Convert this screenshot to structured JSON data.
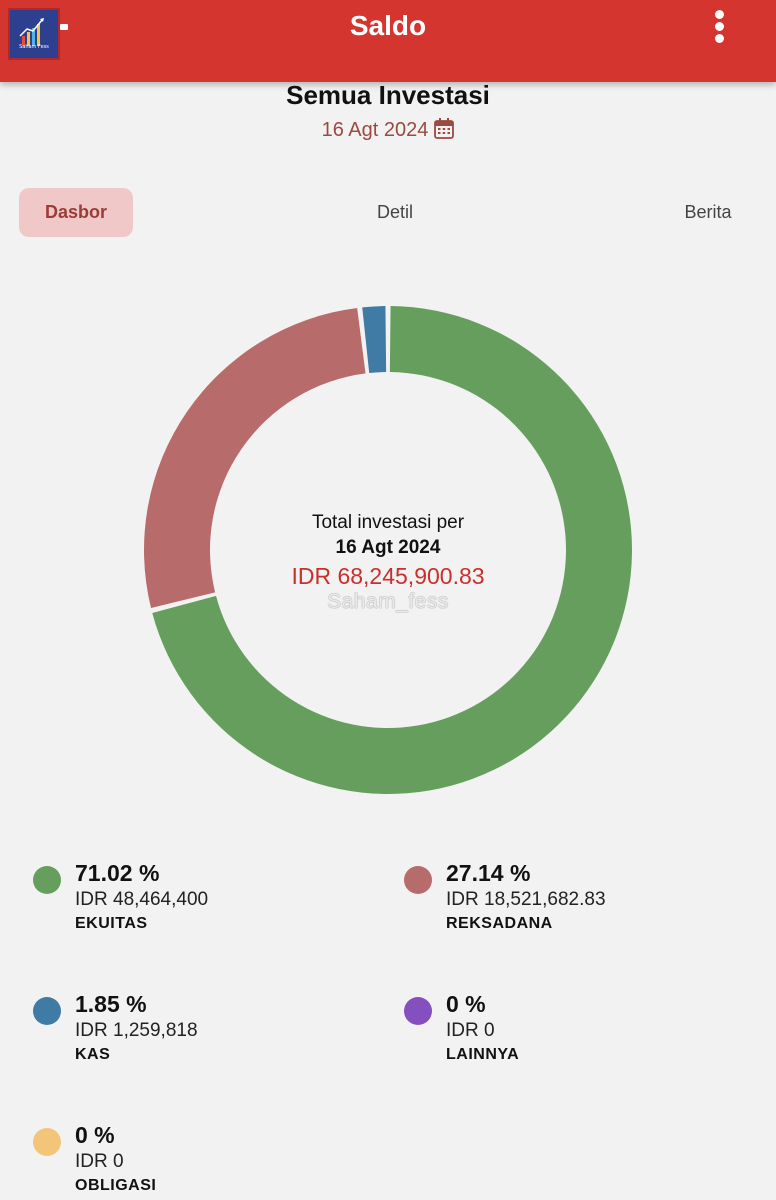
{
  "app_bar": {
    "title": "Saldo",
    "logo_text": "Saham Fess",
    "menu_icon": "more-vertical-icon",
    "color": "#d4352f"
  },
  "page": {
    "heading": "Semua Investasi",
    "date": "16 Agt 2024",
    "date_icon": "calendar-icon"
  },
  "tabs": [
    {
      "label": "Dasbor",
      "active": true
    },
    {
      "label": "Detil",
      "active": false
    },
    {
      "label": "Berita",
      "active": false
    }
  ],
  "donut": {
    "center_line1": "Total investasi per",
    "center_line2": "16 Agt 2024",
    "center_amount": "IDR 68,245,900.83",
    "watermark": "Saham_fess"
  },
  "chart_data": {
    "type": "pie",
    "categories": [
      "EKUITAS",
      "REKSADANA",
      "KAS",
      "LAINNYA",
      "OBLIGASI"
    ],
    "values": [
      71.02,
      27.14,
      1.85,
      0,
      0
    ],
    "colors": [
      "#669f5d",
      "#b86b6b",
      "#3f7ba5",
      "#8450bf",
      "#f3c578"
    ]
  },
  "legend": [
    {
      "percent": "71.02 %",
      "amount": "IDR 48,464,400",
      "label": "EKUITAS",
      "color": "#669f5d"
    },
    {
      "percent": "27.14 %",
      "amount": "IDR 18,521,682.83",
      "label": "REKSADANA",
      "color": "#b86b6b"
    },
    {
      "percent": "1.85 %",
      "amount": "IDR 1,259,818",
      "label": "KAS",
      "color": "#3f7ba5"
    },
    {
      "percent": "0 %",
      "amount": "IDR 0",
      "label": "LAINNYA",
      "color": "#8450bf"
    },
    {
      "percent": "0 %",
      "amount": "IDR 0",
      "label": "OBLIGASI",
      "color": "#f3c578"
    }
  ]
}
